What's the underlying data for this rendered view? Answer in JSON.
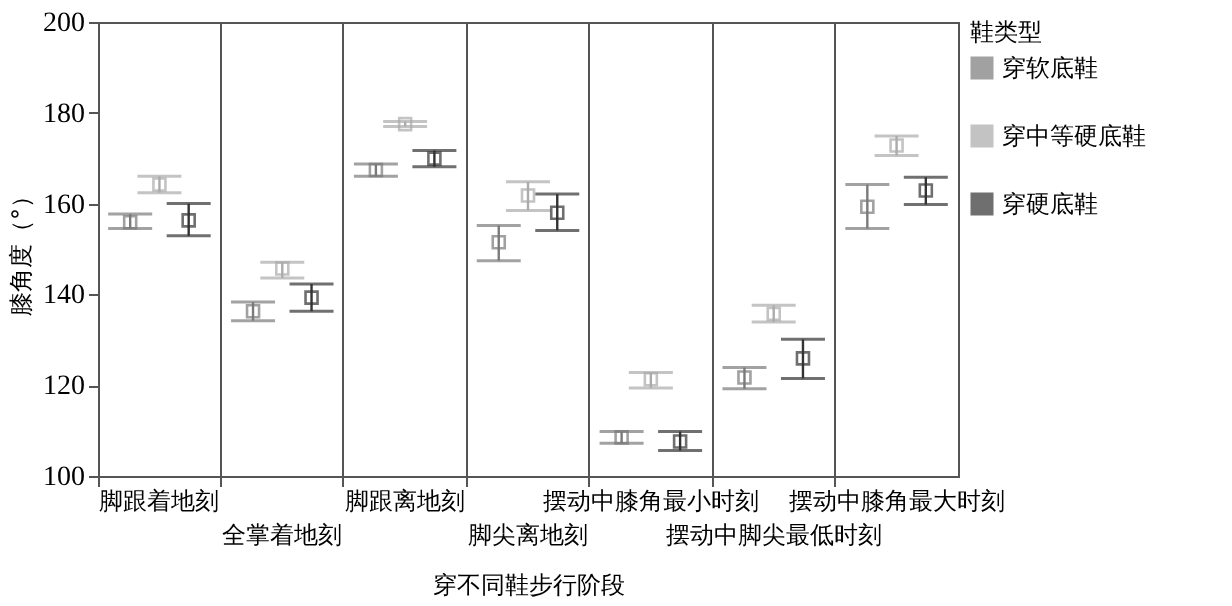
{
  "chart_data": {
    "type": "scatter",
    "xlabel": "穿不同鞋步行阶段",
    "ylabel": "膝角度（°）",
    "legend_title": "鞋类型",
    "categories": [
      "脚跟着地刻",
      "全掌着地刻",
      "脚跟离地刻",
      "脚尖离地刻",
      "摆动中膝角最小时刻",
      "摆动中脚尖最低时刻",
      "摆动中膝角最大时刻"
    ],
    "ylim": [
      100,
      200
    ],
    "yticks": [
      100,
      120,
      140,
      160,
      180,
      200
    ],
    "grid": "x",
    "legend": "right",
    "marker": "square",
    "series": [
      {
        "name": "穿软底鞋",
        "color": "#7a7a7a",
        "values": [
          155.9,
          136.3,
          167.4,
          151.5,
          108.5,
          121.7,
          159.3
        ],
        "errors": [
          [
            154.5,
            157.7
          ],
          [
            134.2,
            138.3
          ],
          [
            166,
            168.7
          ],
          [
            147.4,
            155.2
          ],
          [
            107.2,
            109.8
          ],
          [
            119.2,
            123.9
          ],
          [
            154.5,
            164.2
          ]
        ]
      },
      {
        "name": "穿中等硬底鞋",
        "color": "#ababab",
        "values": [
          164.2,
          145.7,
          177.5,
          161.8,
          121.3,
          135.7,
          172.8
        ],
        "errors": [
          [
            162.4,
            166
          ],
          [
            143.6,
            147.1
          ],
          [
            177,
            178.1
          ],
          [
            158.5,
            164.8
          ],
          [
            119.4,
            122.8
          ],
          [
            133.9,
            137.6
          ],
          [
            170.6,
            174.9
          ]
        ]
      },
      {
        "name": "穿硬底鞋",
        "color": "#333333",
        "values": [
          156.3,
          139.3,
          169.9,
          158,
          107.6,
          125.9,
          162.9
        ],
        "errors": [
          [
            152.9,
            160
          ],
          [
            136.3,
            142.3
          ],
          [
            168.1,
            171.7
          ],
          [
            154.1,
            162.1
          ],
          [
            105.6,
            109.8
          ],
          [
            121.5,
            130.1
          ],
          [
            159.8,
            165.8
          ]
        ]
      }
    ]
  }
}
